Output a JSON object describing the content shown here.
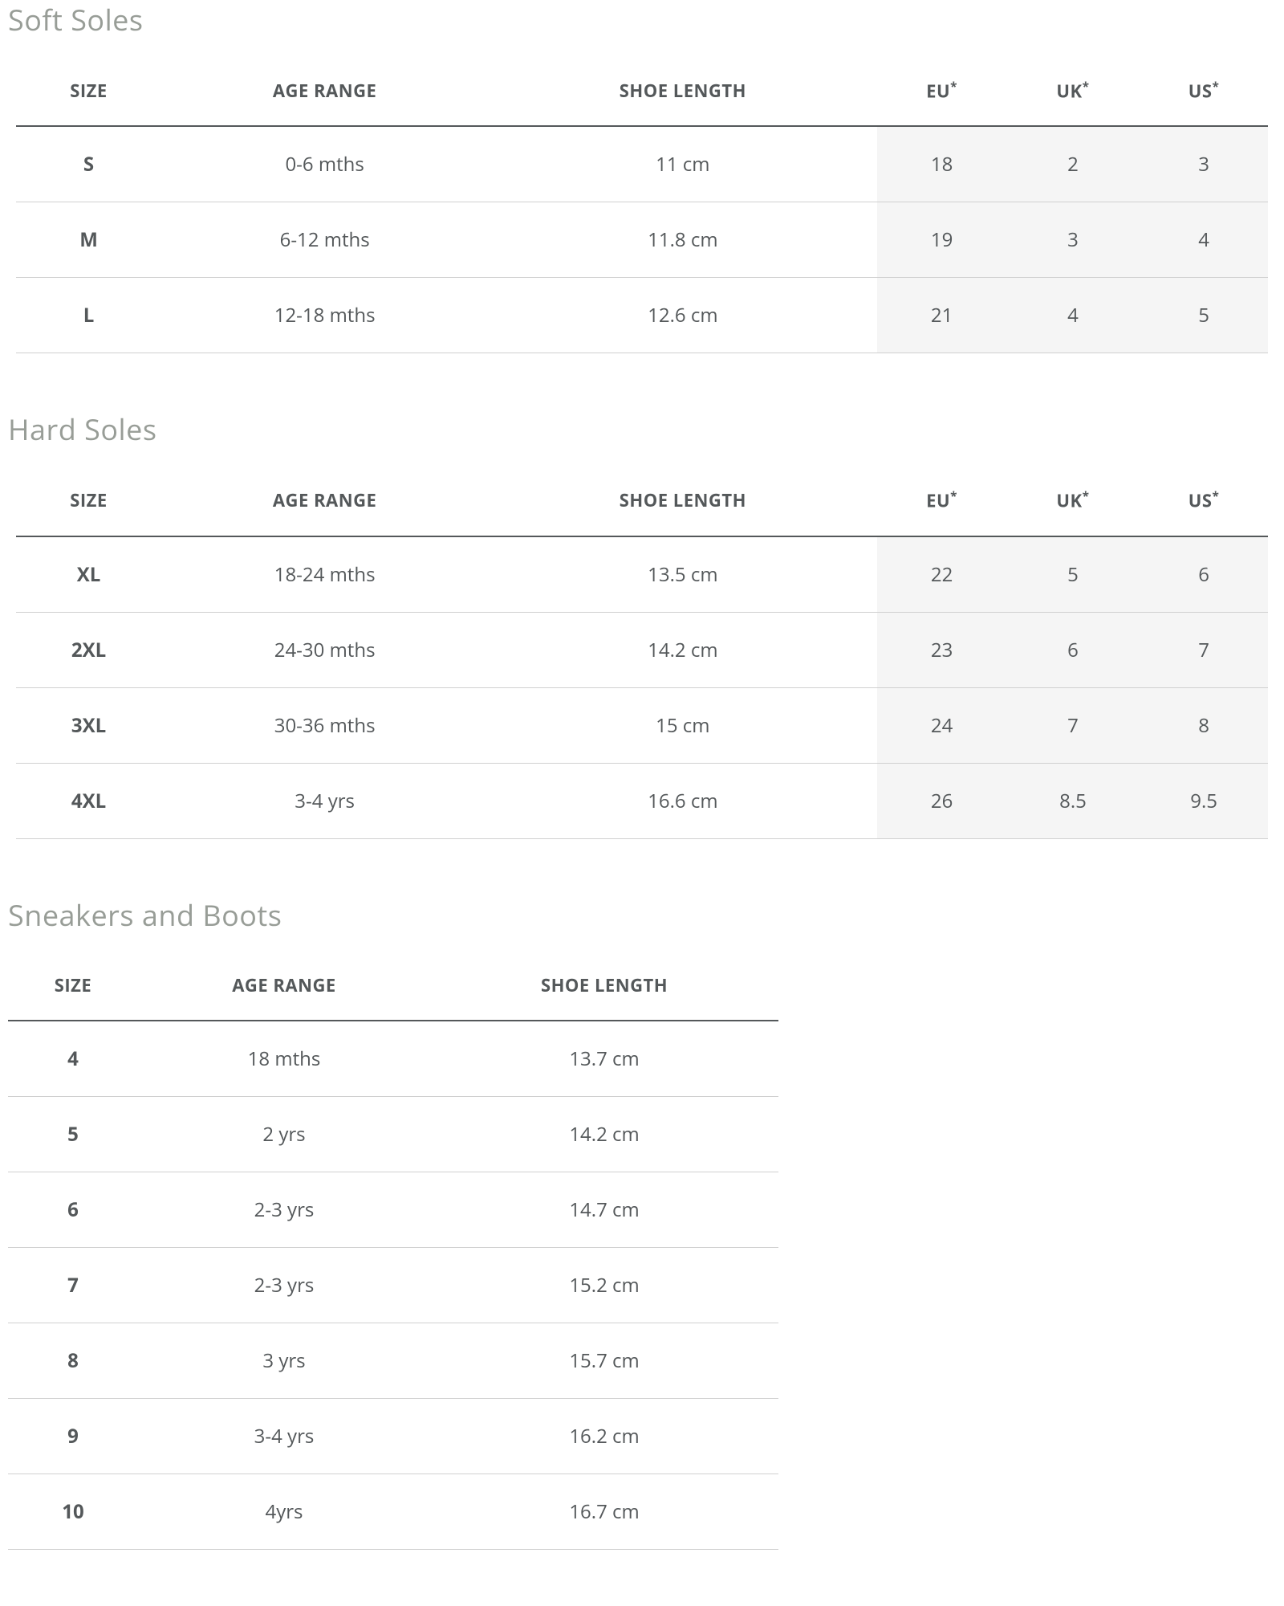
{
  "colors": {
    "heading": "#989d97",
    "text": "#54585a",
    "header_border": "#54585a",
    "row_border": "#d0d0d0",
    "shaded_bg": "#f5f5f5",
    "page_bg": "#ffffff"
  },
  "typography": {
    "heading_fontsize": 36,
    "th_fontsize": 22,
    "td_fontsize": 24,
    "font_family": "Segoe UI, Open Sans, Arial, sans-serif"
  },
  "sections": [
    {
      "title": "Soft Soles",
      "type": "wide",
      "columns": [
        "SIZE",
        "AGE RANGE",
        "SHOE LENGTH",
        "EU*",
        "UK*",
        "US*"
      ],
      "shaded_cols": [
        3,
        4,
        5
      ],
      "bold_cols": [
        0
      ],
      "rows": [
        [
          "S",
          "0-6 mths",
          "11 cm",
          "18",
          "2",
          "3"
        ],
        [
          "M",
          "6-12 mths",
          "11.8 cm",
          "19",
          "3",
          "4"
        ],
        [
          "L",
          "12-18 mths",
          "12.6 cm",
          "21",
          "4",
          "5"
        ]
      ]
    },
    {
      "title": "Hard Soles",
      "type": "wide",
      "columns": [
        "SIZE",
        "AGE RANGE",
        "SHOE LENGTH",
        "EU*",
        "UK*",
        "US*"
      ],
      "shaded_cols": [
        3,
        4,
        5
      ],
      "bold_cols": [
        0
      ],
      "rows": [
        [
          "XL",
          "18-24 mths",
          "13.5 cm",
          "22",
          "5",
          "6"
        ],
        [
          "2XL",
          "24-30 mths",
          "14.2 cm",
          "23",
          "6",
          "7"
        ],
        [
          "3XL",
          "30-36 mths",
          "15 cm",
          "24",
          "7",
          "8"
        ],
        [
          "4XL",
          "3-4 yrs",
          "16.6 cm",
          "26",
          "8.5",
          "9.5"
        ]
      ]
    },
    {
      "title": "Sneakers and Boots",
      "type": "narrow",
      "columns": [
        "SIZE",
        "AGE RANGE",
        "SHOE LENGTH"
      ],
      "shaded_cols": [],
      "bold_cols": [
        0
      ],
      "rows": [
        [
          "4",
          "18 mths",
          "13.7 cm"
        ],
        [
          "5",
          "2 yrs",
          "14.2 cm"
        ],
        [
          "6",
          "2-3 yrs",
          "14.7 cm"
        ],
        [
          "7",
          "2-3 yrs",
          "15.2 cm"
        ],
        [
          "8",
          "3 yrs",
          "15.7 cm"
        ],
        [
          "9",
          "3-4 yrs",
          "16.2 cm"
        ],
        [
          "10",
          "4yrs",
          "16.7 cm"
        ]
      ]
    }
  ]
}
